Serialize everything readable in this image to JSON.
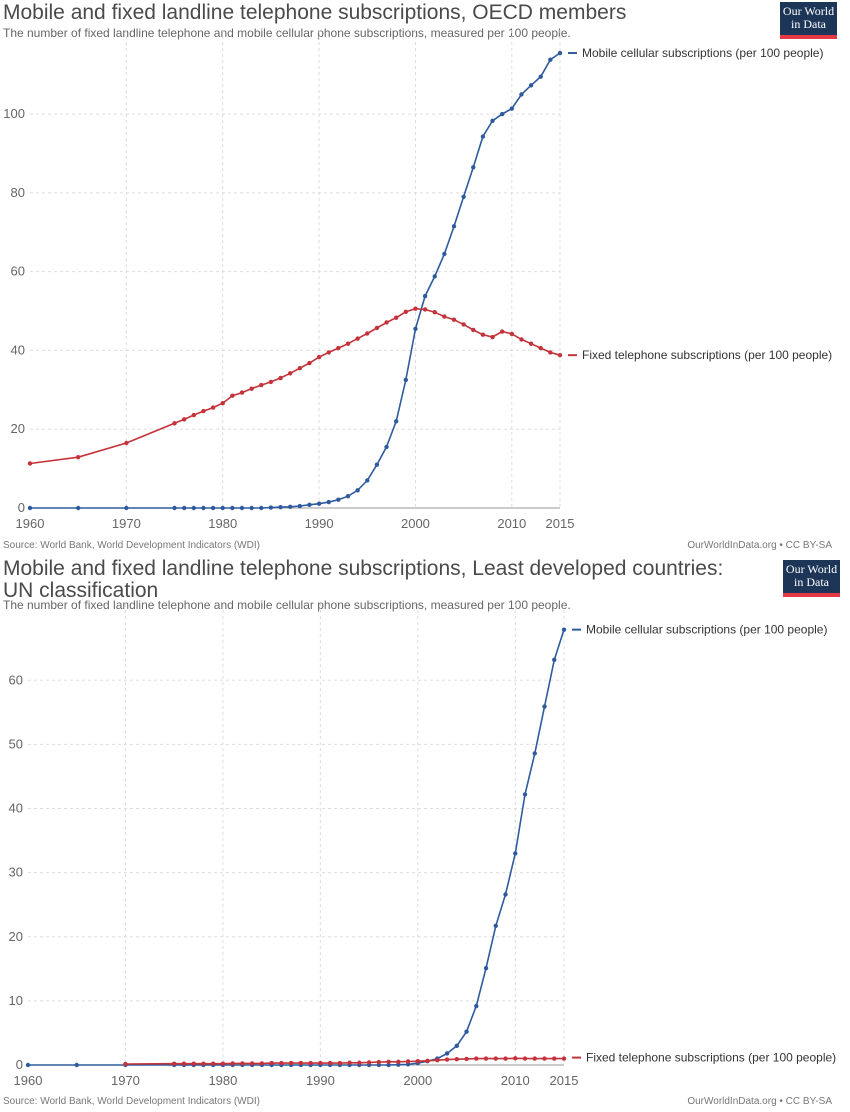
{
  "chart_data": [
    {
      "type": "line",
      "title": "Mobile and fixed landline telephone subscriptions, OECD members",
      "subtitle": "The number of fixed landline telephone and mobile cellular phone subscriptions, measured per 100 people.",
      "source": "Source: World Bank, World Development Indicators (WDI)",
      "license": "OurWorldInData.org • CC BY-SA",
      "logo": [
        "Our World",
        "in Data"
      ],
      "xlabel": "",
      "ylabel": "",
      "xlim": [
        1960,
        2015
      ],
      "ylim": [
        0,
        115
      ],
      "x_ticks": [
        1960,
        1970,
        1980,
        1990,
        2000,
        2010,
        2015
      ],
      "y_ticks": [
        0,
        20,
        40,
        60,
        80,
        100
      ],
      "grid": true,
      "legend": "labels at line ends (right)",
      "series": [
        {
          "name": "Mobile cellular subscriptions (per 100 people)",
          "color": "#2f5b9e",
          "points": [
            [
              1960,
              0
            ],
            [
              1965,
              0
            ],
            [
              1970,
              0
            ],
            [
              1975,
              0
            ],
            [
              1976,
              0
            ],
            [
              1977,
              0
            ],
            [
              1978,
              0
            ],
            [
              1979,
              0
            ],
            [
              1980,
              0
            ],
            [
              1981,
              0
            ],
            [
              1982,
              0
            ],
            [
              1983,
              0
            ],
            [
              1984,
              0
            ],
            [
              1985,
              0.1
            ],
            [
              1986,
              0.2
            ],
            [
              1987,
              0.3
            ],
            [
              1988,
              0.5
            ],
            [
              1989,
              0.8
            ],
            [
              1990,
              1.1
            ],
            [
              1991,
              1.5
            ],
            [
              1992,
              2.1
            ],
            [
              1993,
              3
            ],
            [
              1994,
              4.5
            ],
            [
              1995,
              7
            ],
            [
              1996,
              11
            ],
            [
              1997,
              15.5
            ],
            [
              1998,
              22
            ],
            [
              1999,
              32.5
            ],
            [
              2000,
              45.5
            ],
            [
              2001,
              53.8
            ],
            [
              2002,
              58.8
            ],
            [
              2003,
              64.5
            ],
            [
              2004,
              71.5
            ],
            [
              2005,
              79
            ],
            [
              2006,
              86.5
            ],
            [
              2007,
              94.3
            ],
            [
              2008,
              98.3
            ],
            [
              2009,
              100
            ],
            [
              2010,
              101.4
            ],
            [
              2011,
              105
            ],
            [
              2012,
              107.3
            ],
            [
              2013,
              109.5
            ],
            [
              2014,
              113.8
            ],
            [
              2015,
              115.5
            ]
          ]
        },
        {
          "name": "Fixed telephone subscriptions (per 100 people)",
          "color": "#c4323a",
          "points": [
            [
              1960,
              11.3
            ],
            [
              1965,
              12.9
            ],
            [
              1970,
              16.5
            ],
            [
              1975,
              21.5
            ],
            [
              1976,
              22.5
            ],
            [
              1977,
              23.6
            ],
            [
              1978,
              24.6
            ],
            [
              1979,
              25.5
            ],
            [
              1980,
              26.6
            ],
            [
              1981,
              28.5
            ],
            [
              1982,
              29.3
            ],
            [
              1983,
              30.3
            ],
            [
              1984,
              31.2
            ],
            [
              1985,
              32
            ],
            [
              1986,
              33
            ],
            [
              1987,
              34.2
            ],
            [
              1988,
              35.5
            ],
            [
              1989,
              36.8
            ],
            [
              1990,
              38.3
            ],
            [
              1991,
              39.5
            ],
            [
              1992,
              40.6
            ],
            [
              1993,
              41.7
            ],
            [
              1994,
              43
            ],
            [
              1995,
              44.3
            ],
            [
              1996,
              45.7
            ],
            [
              1997,
              47.1
            ],
            [
              1998,
              48.3
            ],
            [
              1999,
              49.8
            ],
            [
              2000,
              50.6
            ],
            [
              2001,
              50.4
            ],
            [
              2002,
              49.7
            ],
            [
              2003,
              48.6
            ],
            [
              2004,
              47.8
            ],
            [
              2005,
              46.6
            ],
            [
              2006,
              45.2
            ],
            [
              2007,
              44
            ],
            [
              2008,
              43.4
            ],
            [
              2009,
              44.8
            ],
            [
              2010,
              44.2
            ],
            [
              2011,
              42.8
            ],
            [
              2012,
              41.7
            ],
            [
              2013,
              40.6
            ],
            [
              2014,
              39.5
            ],
            [
              2015,
              38.8
            ]
          ]
        }
      ]
    },
    {
      "type": "line",
      "title": "Mobile and fixed landline telephone subscriptions, Least developed countries: UN classification",
      "subtitle": "The number of fixed landline telephone and mobile cellular phone subscriptions, measured per 100 people.",
      "source": "Source: World Bank, World Development Indicators (WDI)",
      "license": "OurWorldInData.org • CC BY-SA",
      "logo": [
        "Our World",
        "in Data"
      ],
      "xlabel": "",
      "ylabel": "",
      "xlim": [
        1960,
        2015
      ],
      "ylim": [
        0,
        68
      ],
      "x_ticks": [
        1960,
        1970,
        1980,
        1990,
        2000,
        2010,
        2015
      ],
      "y_ticks": [
        0,
        10,
        20,
        30,
        40,
        50,
        60
      ],
      "grid": true,
      "legend": "labels at line ends (right)",
      "series": [
        {
          "name": "Mobile cellular subscriptions (per 100 people)",
          "color": "#2f5b9e",
          "points": [
            [
              1960,
              0
            ],
            [
              1965,
              0
            ],
            [
              1970,
              0
            ],
            [
              1975,
              0
            ],
            [
              1976,
              0
            ],
            [
              1977,
              0
            ],
            [
              1978,
              0
            ],
            [
              1979,
              0
            ],
            [
              1980,
              0
            ],
            [
              1981,
              0
            ],
            [
              1982,
              0
            ],
            [
              1983,
              0
            ],
            [
              1984,
              0
            ],
            [
              1985,
              0
            ],
            [
              1986,
              0
            ],
            [
              1987,
              0
            ],
            [
              1988,
              0
            ],
            [
              1989,
              0
            ],
            [
              1990,
              0
            ],
            [
              1991,
              0
            ],
            [
              1992,
              0
            ],
            [
              1993,
              0
            ],
            [
              1994,
              0
            ],
            [
              1995,
              0
            ],
            [
              1996,
              0
            ],
            [
              1997,
              0
            ],
            [
              1998,
              0.05
            ],
            [
              1999,
              0.1
            ],
            [
              2000,
              0.3
            ],
            [
              2001,
              0.6
            ],
            [
              2002,
              1
            ],
            [
              2003,
              1.8
            ],
            [
              2004,
              3
            ],
            [
              2005,
              5.2
            ],
            [
              2006,
              9.2
            ],
            [
              2007,
              15.1
            ],
            [
              2008,
              21.7
            ],
            [
              2009,
              26.6
            ],
            [
              2010,
              33
            ],
            [
              2011,
              42.2
            ],
            [
              2012,
              48.6
            ],
            [
              2013,
              55.9
            ],
            [
              2014,
              63.2
            ],
            [
              2015,
              67.9
            ]
          ]
        },
        {
          "name": "Fixed telephone subscriptions (per 100 people)",
          "color": "#c4323a",
          "points": [
            [
              1970,
              0.15
            ],
            [
              1975,
              0.2
            ],
            [
              1976,
              0.2
            ],
            [
              1977,
              0.2
            ],
            [
              1978,
              0.2
            ],
            [
              1979,
              0.2
            ],
            [
              1980,
              0.2
            ],
            [
              1981,
              0.25
            ],
            [
              1982,
              0.25
            ],
            [
              1983,
              0.25
            ],
            [
              1984,
              0.25
            ],
            [
              1985,
              0.3
            ],
            [
              1986,
              0.3
            ],
            [
              1987,
              0.3
            ],
            [
              1988,
              0.3
            ],
            [
              1989,
              0.3
            ],
            [
              1990,
              0.3
            ],
            [
              1991,
              0.3
            ],
            [
              1992,
              0.3
            ],
            [
              1993,
              0.35
            ],
            [
              1994,
              0.35
            ],
            [
              1995,
              0.4
            ],
            [
              1996,
              0.45
            ],
            [
              1997,
              0.5
            ],
            [
              1998,
              0.5
            ],
            [
              1999,
              0.55
            ],
            [
              2000,
              0.6
            ],
            [
              2001,
              0.65
            ],
            [
              2002,
              0.75
            ],
            [
              2003,
              0.85
            ],
            [
              2004,
              0.9
            ],
            [
              2005,
              0.95
            ],
            [
              2006,
              1
            ],
            [
              2007,
              1
            ],
            [
              2008,
              1
            ],
            [
              2009,
              1
            ],
            [
              2010,
              1.05
            ],
            [
              2011,
              1
            ],
            [
              2012,
              1
            ],
            [
              2013,
              1
            ],
            [
              2014,
              1
            ],
            [
              2015,
              1
            ]
          ]
        }
      ]
    }
  ]
}
